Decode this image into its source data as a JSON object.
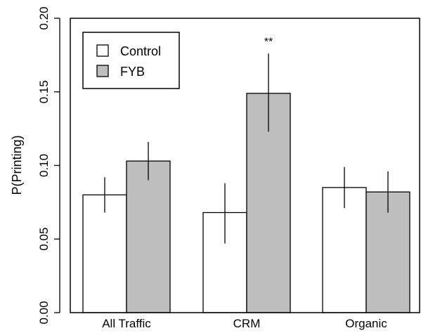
{
  "chart_data": {
    "type": "bar",
    "title": "",
    "xlabel": "",
    "ylabel": "P(Printing)",
    "ylim": [
      0,
      0.2
    ],
    "yticks": [
      "0.00",
      "0.05",
      "0.10",
      "0.15",
      "0.20"
    ],
    "grid": false,
    "categories": [
      "All Traffic",
      "CRM",
      "Organic"
    ],
    "series": [
      {
        "name": "Control",
        "color": "#ffffff",
        "values": [
          0.08,
          0.068,
          0.085
        ],
        "ci_low": [
          0.068,
          0.047,
          0.071
        ],
        "ci_high": [
          0.092,
          0.088,
          0.099
        ]
      },
      {
        "name": "FYB",
        "color": "#bebebe",
        "values": [
          0.103,
          0.149,
          0.082
        ],
        "ci_low": [
          0.09,
          0.123,
          0.068
        ],
        "ci_high": [
          0.116,
          0.176,
          0.096
        ]
      }
    ],
    "legend": {
      "position": "top-left",
      "entries": [
        "Control",
        "FYB"
      ]
    },
    "annotations": [
      {
        "text": "**",
        "category": "CRM",
        "series": "FYB"
      }
    ]
  }
}
